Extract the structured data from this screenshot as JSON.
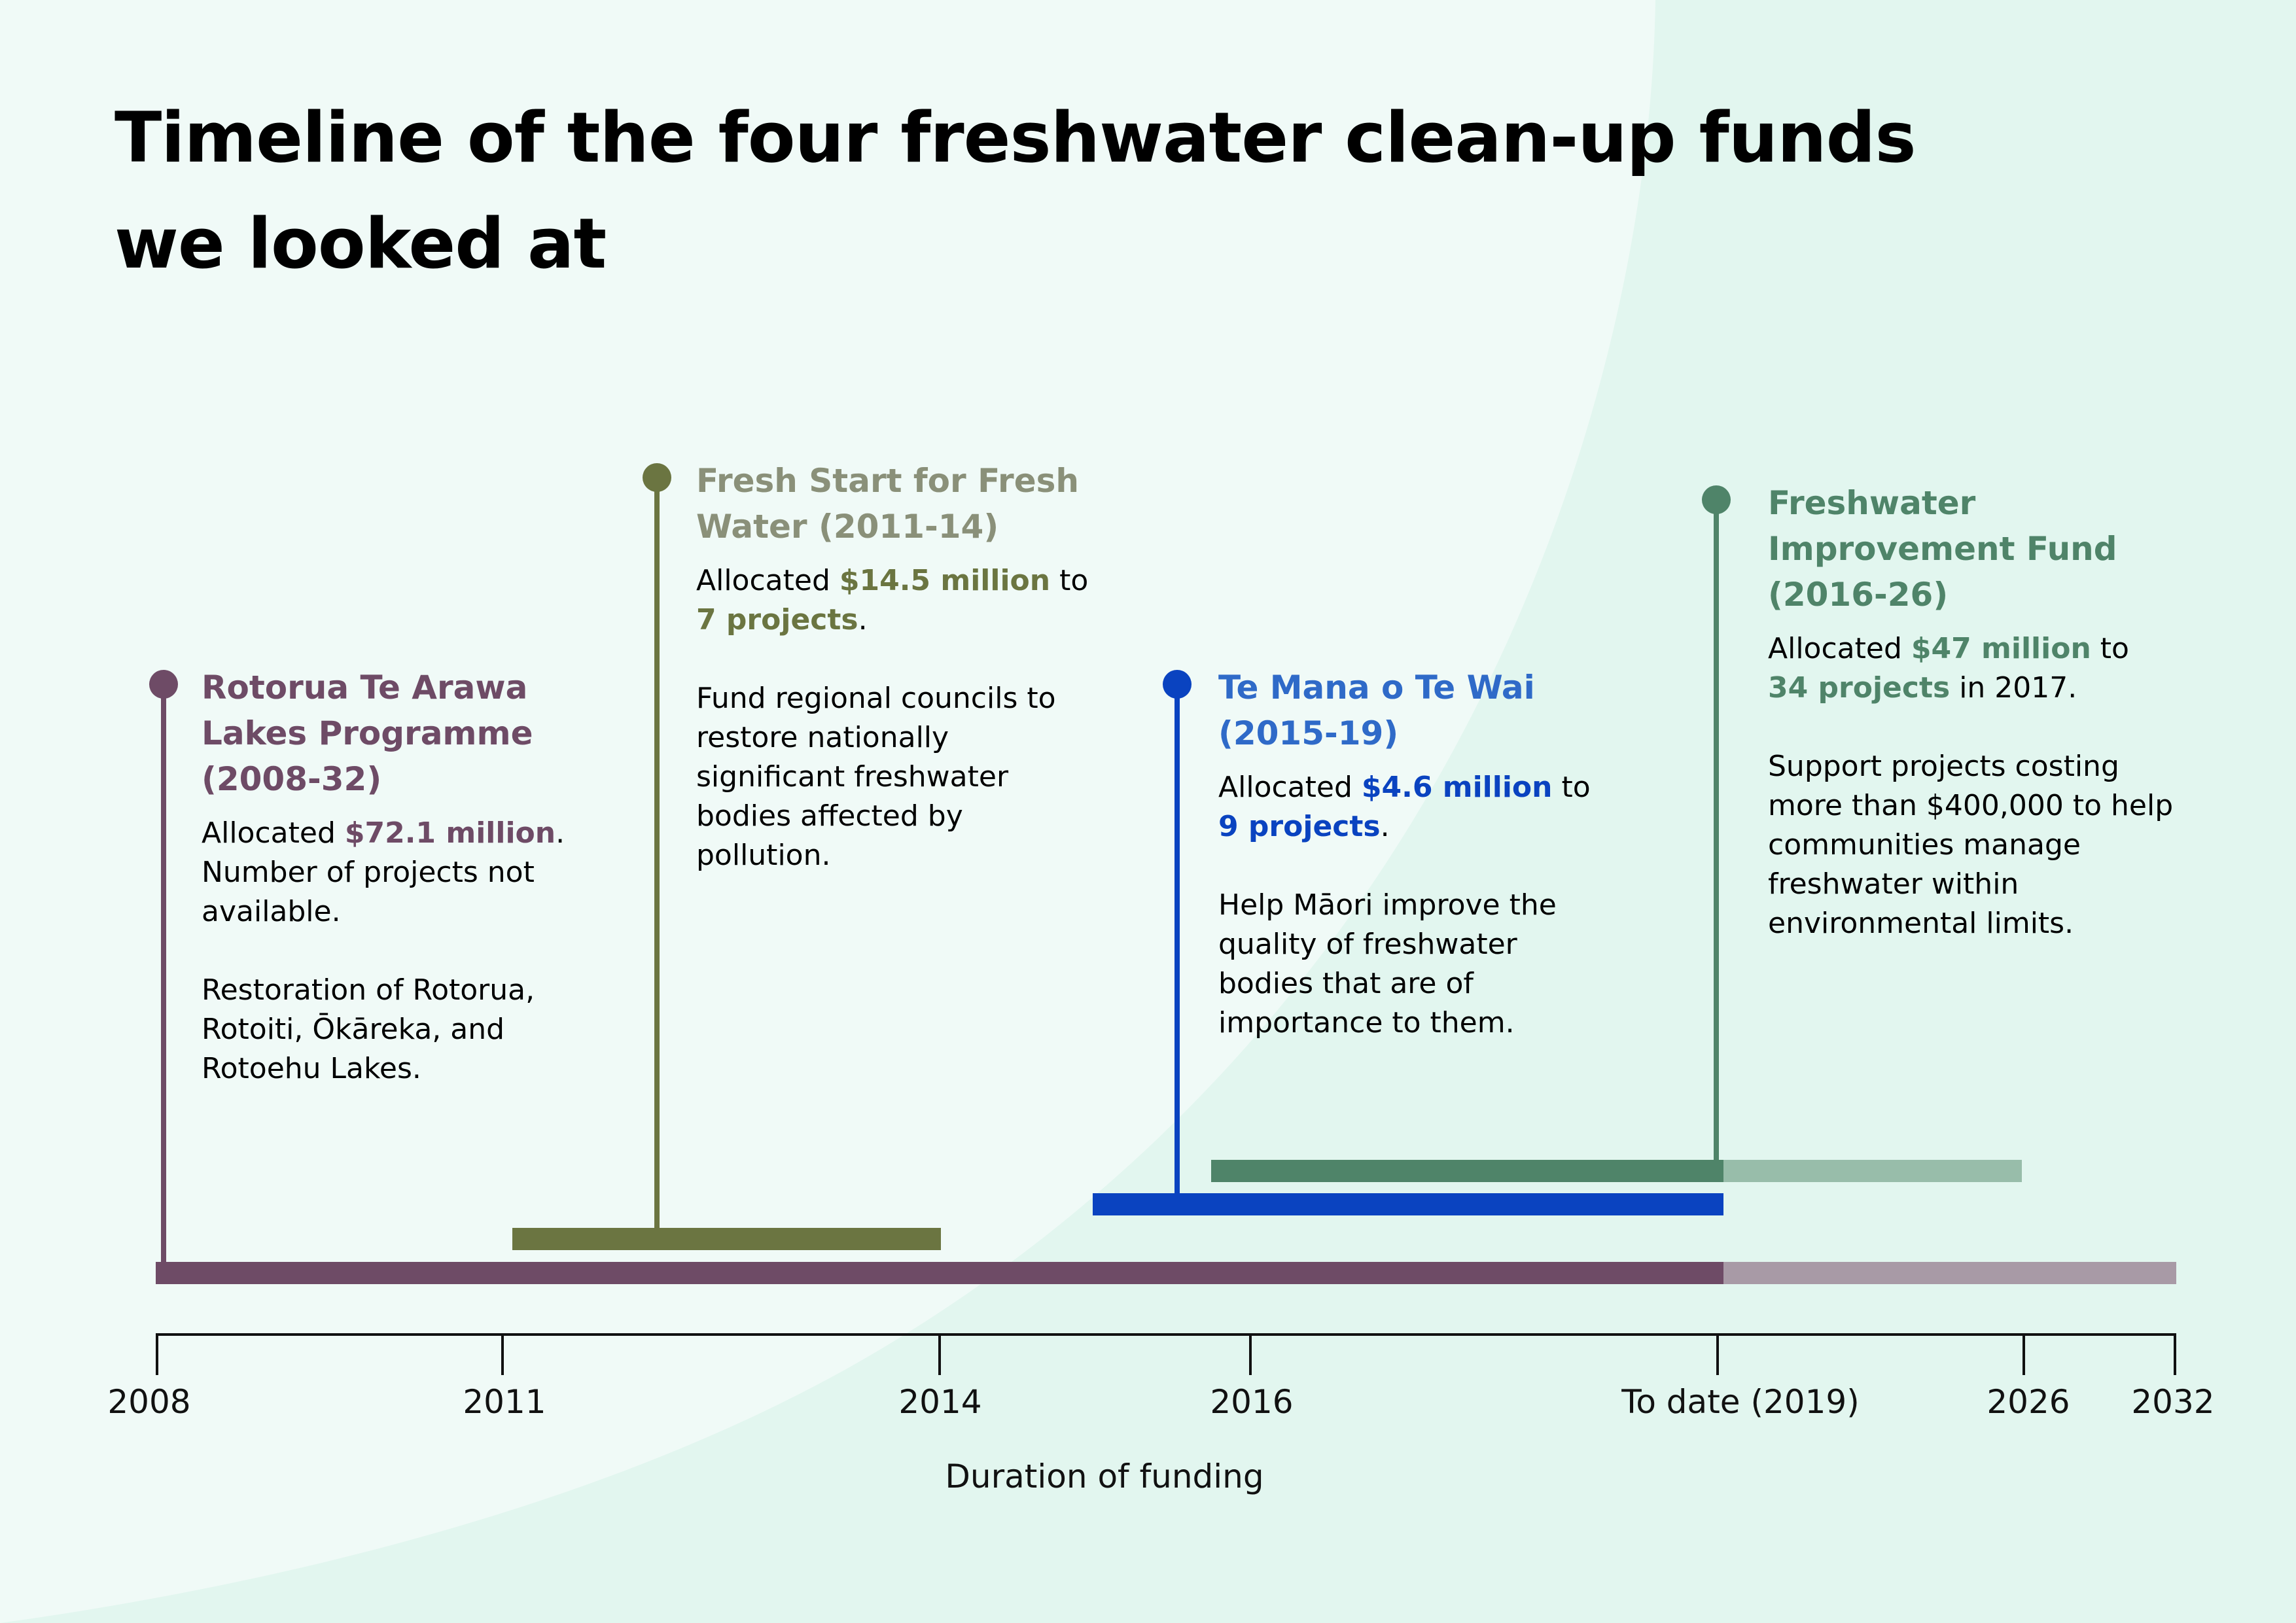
{
  "title_lines": [
    "Timeline of the four freshwater clean-up funds",
    "we looked at"
  ],
  "colors": {
    "background": "#e2f6ef",
    "background_light": "#f0faf7",
    "rotorua": "#6e4b66",
    "rotorua_future": "#a89aa6",
    "fresh_start": "#6b7541",
    "fresh_start_title": "#8a9079",
    "te_mana": "#0a43c0",
    "te_mana_title": "#2f6ac8",
    "fif": "#4f8469",
    "fif_future": "#98bdaa"
  },
  "funds": {
    "rotorua": {
      "name_lines": [
        "Rotorua Te Arawa",
        "Lakes Programme",
        "(2008-32)"
      ],
      "allocated_prefix": "Allocated ",
      "amount": "$72.1 million",
      "amount_suffix": ".",
      "line2": "Number of projects not",
      "line3": "available.",
      "desc_lines": [
        "Restoration of Rotorua,",
        "Rotoiti, Ōkāreka, and",
        "Rotoehu Lakes."
      ],
      "start_year": 2008,
      "end_year": 2032
    },
    "fresh_start": {
      "name_lines": [
        "Fresh Start for Fresh",
        "Water (2011-14)"
      ],
      "allocated_prefix": "Allocated ",
      "amount": "$14.5 million",
      "amount_suffix": " to",
      "projects": "7 projects",
      "projects_suffix": ".",
      "desc_lines": [
        "Fund regional councils to",
        "restore nationally",
        "significant freshwater",
        "bodies affected by",
        "pollution."
      ],
      "start_year": 2011,
      "end_year": 2014
    },
    "te_mana": {
      "name_lines": [
        "Te Mana o Te Wai",
        "(2015-19)"
      ],
      "allocated_prefix": "Allocated ",
      "amount": "$4.6 million",
      "amount_suffix": " to",
      "projects": "9 projects",
      "projects_suffix": ".",
      "desc_lines": [
        "Help Māori improve the",
        "quality of freshwater",
        "bodies that are of",
        "importance to them."
      ],
      "start_year": 2015,
      "end_year": 2019
    },
    "fif": {
      "name_lines": [
        "Freshwater",
        "Improvement Fund",
        "(2016-26)"
      ],
      "allocated_prefix": "Allocated ",
      "amount": "$47 million",
      "amount_suffix": " to",
      "projects": "34 projects",
      "projects_suffix": " in 2017.",
      "desc_lines": [
        "Support projects costing",
        "more than $400,000 to help",
        "communities manage",
        "freshwater within",
        "environmental limits."
      ],
      "start_year": 2016,
      "end_year": 2026
    }
  },
  "chart_data": {
    "type": "timeline",
    "title": "Timeline of the four freshwater clean-up funds we looked at",
    "xlabel": "Duration of funding",
    "x_ticks": [
      "2008",
      "2011",
      "2014",
      "2016",
      "To date (2019)",
      "2026",
      "2032"
    ],
    "to_date_year": 2019,
    "series": [
      {
        "name": "Rotorua Te Arawa Lakes Programme (2008-32)",
        "start": 2008,
        "end": 2032,
        "allocated": "$72.1 million"
      },
      {
        "name": "Fresh Start for Fresh Water (2011-14)",
        "start": 2011,
        "end": 2014,
        "allocated": "$14.5 million",
        "projects": 7
      },
      {
        "name": "Te Mana o Te Wai (2015-19)",
        "start": 2015,
        "end": 2019,
        "allocated": "$4.6 million",
        "projects": 9
      },
      {
        "name": "Freshwater Improvement Fund (2016-26)",
        "start": 2016,
        "end": 2026,
        "allocated": "$47 million",
        "projects": 34
      }
    ]
  }
}
